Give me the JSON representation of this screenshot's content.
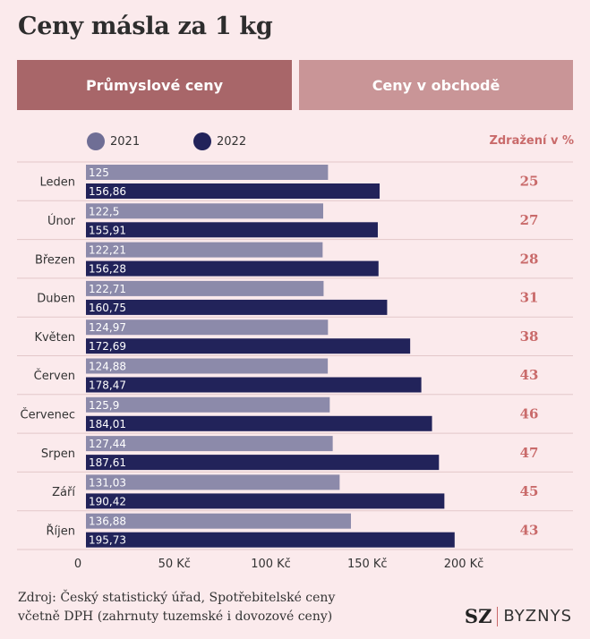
{
  "title": "Ceny másla za 1 kg",
  "tabs": [
    {
      "label": "Průmyslové ceny",
      "active": true
    },
    {
      "label": "Ceny v obchodě",
      "active": false
    }
  ],
  "increase_header": "Zdražení v %",
  "source_lines": [
    "Zdroj: Český statistický úřad, Spotřebitelské ceny",
    "včetně DPH (zahrnuty tuzemské i dovozové ceny)"
  ],
  "logo": {
    "left": "SZ",
    "right": "BYZNYS"
  },
  "colors": {
    "series_2021": "#8c8aaa",
    "series_2022": "#22235a",
    "accent": "#c96a6a"
  },
  "chart_data": {
    "type": "bar",
    "orientation": "horizontal",
    "categories": [
      "Leden",
      "Únor",
      "Březen",
      "Duben",
      "Květen",
      "Červen",
      "Červenec",
      "Srpen",
      "Září",
      "Říjen"
    ],
    "series": [
      {
        "name": "2021",
        "values": [
          125,
          122.5,
          122.21,
          122.71,
          124.97,
          124.88,
          125.9,
          127.44,
          131.03,
          136.88
        ],
        "labels": [
          "125",
          "122,5",
          "122,21",
          "122,71",
          "124,97",
          "124,88",
          "125,9",
          "127,44",
          "131,03",
          "136,88"
        ]
      },
      {
        "name": "2022",
        "values": [
          156.86,
          155.91,
          156.28,
          160.75,
          172.69,
          178.47,
          184.01,
          187.61,
          190.42,
          195.73
        ],
        "labels": [
          "156,86",
          "155,91",
          "156,28",
          "160,75",
          "172,69",
          "178,47",
          "184,01",
          "187,61",
          "190,42",
          "195,73"
        ]
      }
    ],
    "increase_pct": [
      25,
      27,
      28,
      31,
      38,
      43,
      46,
      47,
      45,
      43
    ],
    "xticks": [
      0,
      50,
      100,
      150,
      200
    ],
    "xtick_labels": [
      "0",
      "50 Kč",
      "100 Kč",
      "150 Kč",
      "200 Kč"
    ],
    "xlim": [
      0,
      215
    ],
    "legend_position": "top-left"
  }
}
